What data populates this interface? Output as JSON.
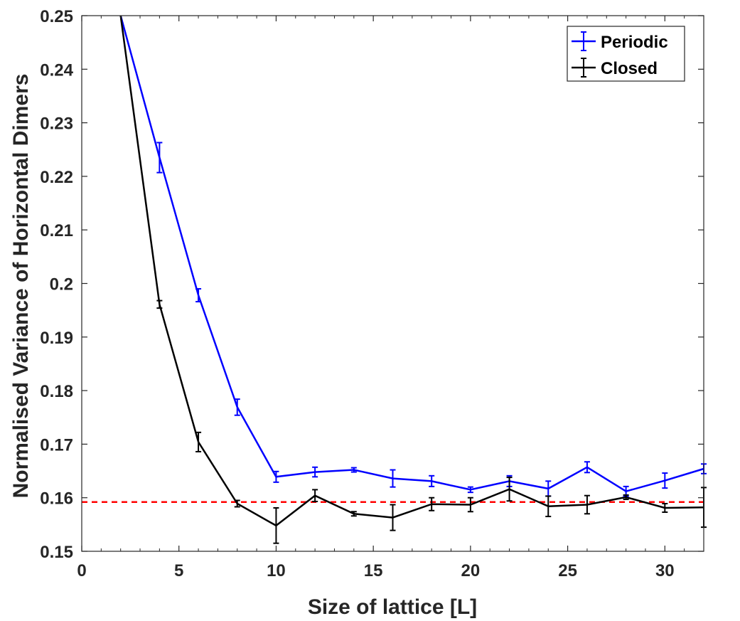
{
  "chart_data": {
    "type": "line",
    "title": "",
    "xlabel": "Size of  lattice [L]",
    "ylabel": "Normalised Variance of Horizontal Dimers",
    "xlim": [
      0,
      32
    ],
    "ylim": [
      0.15,
      0.25
    ],
    "xticks": [
      0,
      5,
      10,
      15,
      20,
      25,
      30
    ],
    "xtick_labels": [
      "0",
      "5",
      "10",
      "15",
      "20",
      "25",
      "30"
    ],
    "yticks": [
      0.15,
      0.16,
      0.17,
      0.18,
      0.19,
      0.2,
      0.21,
      0.22,
      0.23,
      0.24,
      0.25
    ],
    "ytick_labels": [
      "0.15",
      "0.16",
      "0.17",
      "0.18",
      "0.19",
      "0.2",
      "0.21",
      "0.22",
      "0.23",
      "0.24",
      "0.25"
    ],
    "grid": false,
    "legend_position": "top-right",
    "x": [
      2,
      4,
      6,
      8,
      10,
      12,
      14,
      16,
      18,
      20,
      22,
      24,
      26,
      28,
      30,
      32
    ],
    "series": [
      {
        "name": "Periodic",
        "color": "#0000ff",
        "values": [
          0.25,
          0.2235,
          0.1978,
          0.1769,
          0.1639,
          0.1648,
          0.1652,
          0.1636,
          0.1631,
          0.1615,
          0.1631,
          0.1617,
          0.1657,
          0.1612,
          0.1632,
          0.1654
        ],
        "errors": [
          0.0,
          0.0028,
          0.0012,
          0.0015,
          0.001,
          0.0009,
          0.0004,
          0.0016,
          0.001,
          0.0005,
          0.001,
          0.0014,
          0.001,
          0.0009,
          0.0014,
          0.0009
        ]
      },
      {
        "name": "Closed",
        "color": "#000000",
        "values": [
          0.25,
          0.1961,
          0.1704,
          0.1589,
          0.1548,
          0.1604,
          0.157,
          0.1563,
          0.1588,
          0.1587,
          0.1616,
          0.1584,
          0.1587,
          0.1601,
          0.1581,
          0.1582
        ],
        "errors": [
          0.0,
          0.0007,
          0.0018,
          0.0006,
          0.0033,
          0.0011,
          0.0004,
          0.0024,
          0.0012,
          0.0013,
          0.0022,
          0.0019,
          0.0017,
          0.0004,
          0.0008,
          0.0037
        ]
      }
    ],
    "reference_line": {
      "y": 0.1592,
      "color": "#ff0000",
      "style": "dashed"
    }
  }
}
